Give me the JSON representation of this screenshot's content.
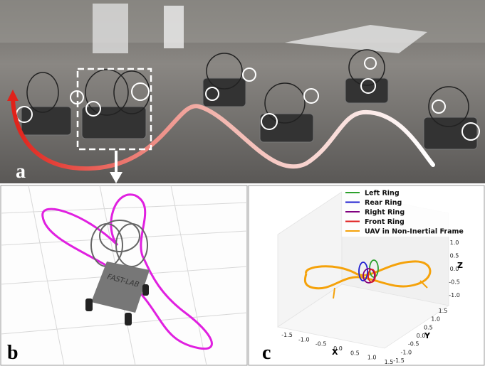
{
  "panels": {
    "a": {
      "label": "a"
    },
    "b": {
      "label": "b",
      "robot_text": "FAST-LAB"
    },
    "c": {
      "label": "c",
      "legend": [
        {
          "name": "Left Ring",
          "color": "#2ca02c"
        },
        {
          "name": "Rear Ring",
          "color": "#1f1fd0"
        },
        {
          "name": "Right Ring",
          "color": "#800080"
        },
        {
          "name": "Front Ring",
          "color": "#e02020"
        },
        {
          "name": "UAV in Non-Inertial Frame",
          "color": "#f5a20a"
        }
      ],
      "x_label": "X",
      "y_label": "Y",
      "z_label": "Z",
      "x_ticks": [
        "-1.5",
        "-1.0",
        "-0.5",
        "0.0",
        "0.5",
        "1.0",
        "1.5"
      ],
      "y_ticks": [
        "1.5",
        "1.0",
        "0.5",
        "0.0",
        "-0.5",
        "-1.0",
        "-1.5"
      ],
      "z_ticks": [
        "1.0",
        "0.5",
        "0.0",
        "-0.5",
        "-1.0"
      ]
    }
  }
}
